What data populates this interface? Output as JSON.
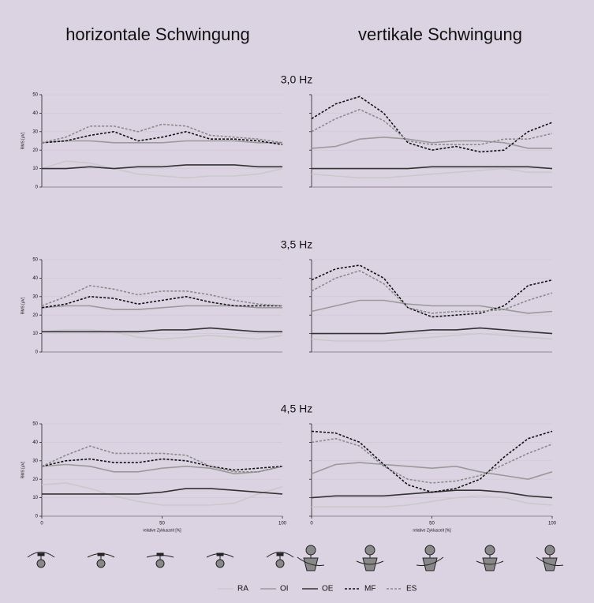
{
  "headers": [
    "horizontale Schwingung",
    "vertikale Schwingung"
  ],
  "rows": [
    "3,0 Hz",
    "3,5 Hz",
    "4,5 Hz"
  ],
  "chart_data": [
    {
      "type": "line",
      "x": [
        0,
        10,
        20,
        30,
        40,
        50,
        60,
        70,
        80,
        90,
        100
      ],
      "xlim": [
        0,
        100
      ],
      "ylim": [
        0,
        50
      ],
      "yticks": [
        0,
        10,
        20,
        30,
        40,
        50
      ],
      "ytick_labels": true,
      "ylabel": "RMS [µV]",
      "series": [
        {
          "name": "RA",
          "color": "#c9c9c9",
          "dashed": false,
          "values": [
            10,
            14,
            13,
            10,
            7,
            6,
            5,
            6,
            6,
            7,
            10
          ]
        },
        {
          "name": "OI",
          "color": "#9a9a9a",
          "dashed": false,
          "values": [
            24,
            25,
            25,
            24,
            24,
            24,
            25,
            25,
            25,
            24,
            24
          ]
        },
        {
          "name": "OE",
          "color": "#333333",
          "dashed": false,
          "values": [
            10,
            10,
            11,
            10,
            11,
            11,
            12,
            12,
            12,
            11,
            11
          ]
        },
        {
          "name": "MF",
          "color": "#111111",
          "dashed": true,
          "values": [
            24,
            25,
            28,
            30,
            25,
            27,
            30,
            26,
            26,
            25,
            23
          ]
        },
        {
          "name": "ES",
          "color": "#8a8a8a",
          "dashed": true,
          "values": [
            24,
            27,
            33,
            33,
            30,
            34,
            33,
            28,
            27,
            26,
            24
          ]
        }
      ]
    },
    {
      "type": "line",
      "x": [
        0,
        10,
        20,
        30,
        40,
        50,
        60,
        70,
        80,
        90,
        100
      ],
      "xlim": [
        0,
        100
      ],
      "ylim": [
        0,
        50
      ],
      "yticks": [
        0,
        10,
        20,
        30,
        40,
        50
      ],
      "ytick_labels": false,
      "series": [
        {
          "name": "RA",
          "color": "#c9c9c9",
          "dashed": false,
          "values": [
            7,
            6,
            5,
            5,
            6,
            7,
            8,
            9,
            10,
            8,
            8
          ]
        },
        {
          "name": "OI",
          "color": "#9a9a9a",
          "dashed": false,
          "values": [
            21,
            22,
            26,
            27,
            26,
            24,
            25,
            25,
            24,
            21,
            21
          ]
        },
        {
          "name": "OE",
          "color": "#333333",
          "dashed": false,
          "values": [
            10,
            10,
            10,
            10,
            10,
            11,
            11,
            11,
            11,
            11,
            10
          ]
        },
        {
          "name": "MF",
          "color": "#111111",
          "dashed": true,
          "values": [
            37,
            45,
            49,
            40,
            24,
            20,
            22,
            19,
            20,
            30,
            35
          ]
        },
        {
          "name": "ES",
          "color": "#8a8a8a",
          "dashed": true,
          "values": [
            30,
            37,
            42,
            36,
            25,
            23,
            23,
            23,
            26,
            26,
            29
          ]
        }
      ]
    },
    {
      "type": "line",
      "x": [
        0,
        10,
        20,
        30,
        40,
        50,
        60,
        70,
        80,
        90,
        100
      ],
      "xlim": [
        0,
        100
      ],
      "ylim": [
        0,
        50
      ],
      "yticks": [
        0,
        10,
        20,
        30,
        40,
        50
      ],
      "ytick_labels": true,
      "ylabel": "RMS [µV]",
      "series": [
        {
          "name": "RA",
          "color": "#c9c9c9",
          "dashed": false,
          "values": [
            11,
            12,
            12,
            11,
            8,
            7,
            8,
            9,
            8,
            7,
            9
          ]
        },
        {
          "name": "OI",
          "color": "#9a9a9a",
          "dashed": false,
          "values": [
            24,
            25,
            25,
            23,
            23,
            24,
            25,
            25,
            25,
            24,
            24
          ]
        },
        {
          "name": "OE",
          "color": "#333333",
          "dashed": false,
          "values": [
            11,
            11,
            11,
            11,
            11,
            12,
            12,
            13,
            12,
            11,
            11
          ]
        },
        {
          "name": "MF",
          "color": "#111111",
          "dashed": true,
          "values": [
            24,
            26,
            30,
            29,
            26,
            28,
            30,
            27,
            25,
            25,
            25
          ]
        },
        {
          "name": "ES",
          "color": "#8a8a8a",
          "dashed": true,
          "values": [
            25,
            30,
            36,
            34,
            31,
            33,
            33,
            31,
            28,
            26,
            25
          ]
        }
      ]
    },
    {
      "type": "line",
      "x": [
        0,
        10,
        20,
        30,
        40,
        50,
        60,
        70,
        80,
        90,
        100
      ],
      "xlim": [
        0,
        100
      ],
      "ylim": [
        0,
        50
      ],
      "yticks": [
        0,
        10,
        20,
        30,
        40,
        50
      ],
      "ytick_labels": false,
      "series": [
        {
          "name": "RA",
          "color": "#c9c9c9",
          "dashed": false,
          "values": [
            7,
            6,
            6,
            6,
            7,
            8,
            9,
            10,
            9,
            8,
            7
          ]
        },
        {
          "name": "OI",
          "color": "#9a9a9a",
          "dashed": false,
          "values": [
            22,
            25,
            28,
            28,
            26,
            25,
            25,
            25,
            23,
            21,
            22
          ]
        },
        {
          "name": "OE",
          "color": "#333333",
          "dashed": false,
          "values": [
            10,
            10,
            10,
            10,
            11,
            12,
            12,
            13,
            12,
            11,
            10
          ]
        },
        {
          "name": "MF",
          "color": "#111111",
          "dashed": true,
          "values": [
            39,
            45,
            47,
            40,
            24,
            19,
            20,
            21,
            25,
            36,
            39
          ]
        },
        {
          "name": "ES",
          "color": "#8a8a8a",
          "dashed": true,
          "values": [
            33,
            40,
            44,
            37,
            24,
            21,
            22,
            22,
            23,
            28,
            32
          ]
        }
      ]
    },
    {
      "type": "line",
      "x": [
        0,
        10,
        20,
        30,
        40,
        50,
        60,
        70,
        80,
        90,
        100
      ],
      "xlim": [
        0,
        100
      ],
      "ylim": [
        0,
        50
      ],
      "yticks": [
        0,
        10,
        20,
        30,
        40,
        50
      ],
      "ytick_labels": true,
      "ylabel": "RMS [µV]",
      "xticks": [
        0,
        50,
        100
      ],
      "xlabel": "relative Zykluszeit [%]",
      "series": [
        {
          "name": "RA",
          "color": "#c9c9c9",
          "dashed": false,
          "values": [
            17,
            18,
            15,
            11,
            8,
            6,
            6,
            6,
            7,
            12,
            16
          ]
        },
        {
          "name": "OI",
          "color": "#9a9a9a",
          "dashed": false,
          "values": [
            27,
            28,
            27,
            24,
            24,
            26,
            27,
            26,
            23,
            24,
            27
          ]
        },
        {
          "name": "OE",
          "color": "#333333",
          "dashed": false,
          "values": [
            12,
            12,
            12,
            12,
            12,
            13,
            15,
            15,
            14,
            13,
            12
          ]
        },
        {
          "name": "MF",
          "color": "#111111",
          "dashed": true,
          "values": [
            27,
            30,
            31,
            29,
            29,
            31,
            30,
            27,
            25,
            26,
            27
          ]
        },
        {
          "name": "ES",
          "color": "#8a8a8a",
          "dashed": true,
          "values": [
            27,
            33,
            38,
            34,
            34,
            34,
            33,
            27,
            24,
            24,
            27
          ]
        }
      ]
    },
    {
      "type": "line",
      "x": [
        0,
        10,
        20,
        30,
        40,
        50,
        60,
        70,
        80,
        90,
        100
      ],
      "xlim": [
        0,
        100
      ],
      "ylim": [
        0,
        50
      ],
      "yticks": [
        0,
        10,
        20,
        30,
        40,
        50
      ],
      "ytick_labels": false,
      "xticks": [
        0,
        50,
        100
      ],
      "xlabel": "relative Zykluszeit [%]",
      "series": [
        {
          "name": "RA",
          "color": "#c9c9c9",
          "dashed": false,
          "values": [
            5,
            5,
            5,
            5,
            6,
            8,
            10,
            11,
            10,
            7,
            6
          ]
        },
        {
          "name": "OI",
          "color": "#9a9a9a",
          "dashed": false,
          "values": [
            23,
            28,
            29,
            28,
            27,
            26,
            27,
            24,
            22,
            20,
            24
          ]
        },
        {
          "name": "OE",
          "color": "#333333",
          "dashed": false,
          "values": [
            10,
            11,
            11,
            11,
            12,
            13,
            14,
            14,
            13,
            11,
            10
          ]
        },
        {
          "name": "MF",
          "color": "#111111",
          "dashed": true,
          "values": [
            46,
            45,
            40,
            28,
            17,
            13,
            15,
            20,
            32,
            42,
            46
          ]
        },
        {
          "name": "ES",
          "color": "#8a8a8a",
          "dashed": true,
          "values": [
            40,
            42,
            38,
            27,
            20,
            18,
            19,
            22,
            28,
            34,
            39
          ]
        }
      ]
    }
  ]
}
